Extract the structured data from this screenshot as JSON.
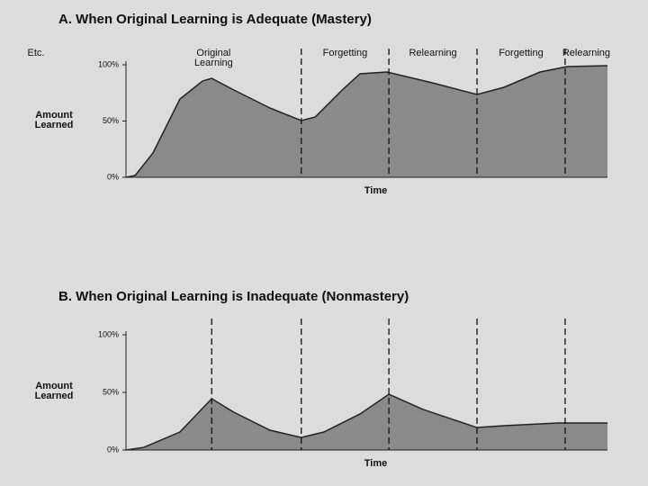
{
  "chart_data": [
    {
      "type": "area",
      "title": "A. When Original Learning is Adequate (Mastery)",
      "y_label": "Amount Learned",
      "x_label": "Time",
      "x": [
        0,
        1.9,
        5.6,
        11.2,
        15.9,
        17.8,
        22.4,
        29.9,
        36.4,
        39.3,
        44.9,
        48.6,
        54.2,
        63.6,
        72.9,
        78.5,
        86,
        91.6,
        100
      ],
      "values": [
        0,
        1.6,
        21.6,
        69.6,
        85.6,
        88,
        77.6,
        61.6,
        50.4,
        53.6,
        77.6,
        92,
        93.6,
        84,
        73.6,
        80,
        93.6,
        98.4,
        99.2
      ],
      "color": "#8a8a8a",
      "xlim": [
        0,
        100
      ],
      "ylim": [
        0,
        100
      ],
      "yticks": [
        {
          "value": 0,
          "label": "0%"
        },
        {
          "value": 50,
          "label": "50%"
        },
        {
          "value": 100,
          "label": "100%"
        }
      ],
      "dividers": [
        36.4,
        54.6,
        72.9,
        91.2
      ],
      "phases": [
        "Original Learning",
        "Forgetting",
        "Relearning",
        "Forgetting",
        "Relearning",
        "Etc."
      ]
    },
    {
      "type": "area",
      "title": "B. When Original Learning is Inadequate (Nonmastery)",
      "y_label": "Amount Learned",
      "x_label": "Time",
      "x": [
        0,
        3.7,
        11.2,
        17.8,
        22.4,
        29.9,
        36.4,
        41.1,
        48.6,
        54.6,
        61.7,
        72.9,
        78.5,
        89.7,
        100
      ],
      "values": [
        0,
        2.3,
        15.6,
        44.5,
        32.8,
        17.2,
        10.9,
        15.6,
        31.3,
        48.4,
        35.2,
        19.5,
        21.1,
        23.4,
        23.4
      ],
      "color": "#8a8a8a",
      "xlim": [
        0,
        100
      ],
      "ylim": [
        0,
        100
      ],
      "yticks": [
        {
          "value": 0,
          "label": "0%"
        },
        {
          "value": 50,
          "label": "50%"
        },
        {
          "value": 100,
          "label": "100%"
        }
      ],
      "dividers": [
        17.8,
        36.4,
        54.6,
        72.9,
        91.2
      ]
    }
  ]
}
